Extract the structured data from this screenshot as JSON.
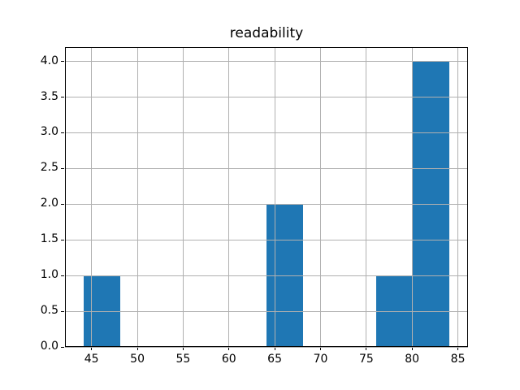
{
  "figure": {
    "background": "#ffffff"
  },
  "chart_data": {
    "type": "histogram",
    "title": "readability",
    "xlabel": "",
    "ylabel": "",
    "bar_color": "#1f77b4",
    "grid_color": "#b0b0b0",
    "axis_color": "#000000",
    "grid": true,
    "grid_above_bars": true,
    "legend": null,
    "xlim": [
      42.1,
      86.1
    ],
    "ylim": [
      0,
      4.2
    ],
    "x_ticks": [
      "45",
      "50",
      "55",
      "60",
      "65",
      "70",
      "75",
      "80",
      "85"
    ],
    "y_ticks": [
      "0.0",
      "0.5",
      "1.0",
      "1.5",
      "2.0",
      "2.5",
      "3.0",
      "3.5",
      "4.0"
    ],
    "bars": [
      {
        "x0": 44.1,
        "x1": 48.1,
        "count": 1
      },
      {
        "x0": 64.1,
        "x1": 68.1,
        "count": 2
      },
      {
        "x0": 76.1,
        "x1": 80.1,
        "count": 1
      },
      {
        "x0": 80.1,
        "x1": 84.1,
        "count": 4
      }
    ]
  }
}
